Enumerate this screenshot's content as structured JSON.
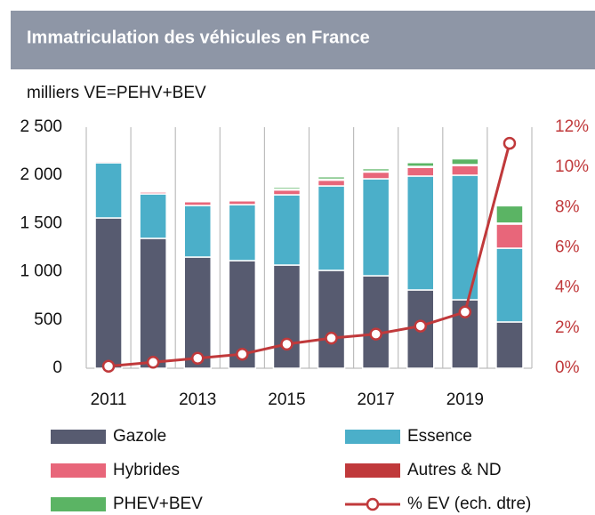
{
  "chart_data": {
    "type": "stacked_bar_line",
    "title": "Immatriculation des véhicules en France",
    "ylabel": "milliers VE=PEHV+BEV",
    "categories": [
      "2011",
      null,
      "2013",
      null,
      "2015",
      null,
      "2017",
      null,
      "2019",
      null
    ],
    "ylim": [
      0,
      2500
    ],
    "yticks": [
      0,
      500,
      {
        "value": 1000,
        "label": "1 000"
      },
      {
        "value": 1500,
        "label": "1 500"
      },
      {
        "value": 2000,
        "label": "2 000"
      },
      {
        "value": 2500,
        "label": "2 500"
      }
    ],
    "y2lim": [
      0,
      12
    ],
    "y2ticks": [
      {
        "value": 0,
        "label": "0%"
      },
      {
        "value": 2,
        "label": "2%"
      },
      {
        "value": 4,
        "label": "4%"
      },
      {
        "value": 6,
        "label": "6%"
      },
      {
        "value": 8,
        "label": "8%"
      },
      {
        "value": 10,
        "label": "10%"
      },
      {
        "value": 12,
        "label": "12%"
      }
    ],
    "grid": true,
    "legend": "bottom",
    "series": [
      {
        "name": "Gazole",
        "color": "#575b70",
        "values": [
          1559,
          1347,
          1153,
          1116,
          1070,
          1015,
          959,
          812,
          710,
          480
        ]
      },
      {
        "name": "Essence",
        "color": "#4bafc9",
        "values": [
          572,
          461,
          535,
          581,
          729,
          876,
          1006,
          1181,
          1292,
          765
        ]
      },
      {
        "name": "Hybrides",
        "color": "#e8667a",
        "values": [
          15,
          20,
          40,
          40,
          50,
          60,
          70,
          90,
          100,
          250
        ]
      },
      {
        "name": "Autres & ND",
        "color": "#c0393b",
        "values": [
          10,
          10,
          10,
          10,
          10,
          10,
          10,
          10,
          10,
          10
        ]
      },
      {
        "name": "PHEV+BEV",
        "color": "#5bb464",
        "values": [
          5,
          10,
          10,
          10,
          20,
          25,
          25,
          40,
          60,
          180
        ]
      },
      {
        "name": "% EV (ech. dtre)",
        "color": "#c0393b",
        "axis": "y2",
        "values": [
          0.1,
          0.3,
          0.5,
          0.7,
          1.2,
          1.5,
          1.7,
          2.1,
          2.8,
          11.2
        ]
      }
    ]
  }
}
